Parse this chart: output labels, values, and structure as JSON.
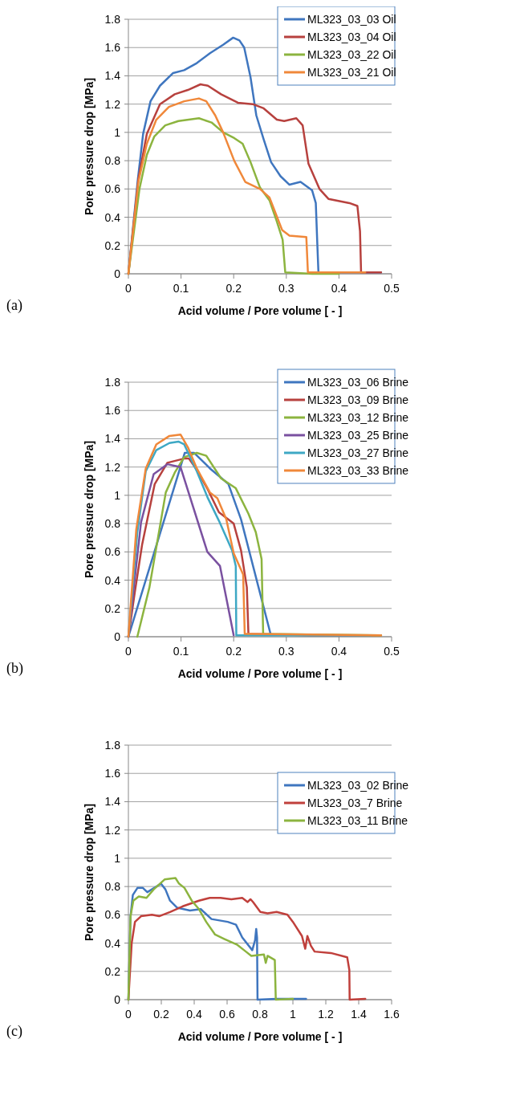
{
  "chart_data": [
    {
      "type": "line",
      "xlabel": "Acid volume / Pore volume [ - ]",
      "ylabel": "Pore pressure drop  [MPa]",
      "annotations": [
        "(a)"
      ],
      "xlim": [
        0,
        0.5
      ],
      "xticks": [
        0,
        0.1,
        0.2,
        0.3,
        0.4,
        0.5
      ],
      "ylim": [
        0,
        1.8
      ],
      "yticks": [
        0,
        0.2,
        0.4,
        0.6,
        0.8,
        1,
        1.2,
        1.4,
        1.6,
        1.8
      ],
      "grid": "y",
      "legend": "top right",
      "line_style": "solid",
      "marker": "none",
      "series": [
        {
          "name": "ML323_03_03 Oil",
          "color": "#3f76bf",
          "x": [
            0,
            0.018,
            0.028,
            0.042,
            0.06,
            0.085,
            0.106,
            0.13,
            0.155,
            0.18,
            0.199,
            0.211,
            0.22,
            0.232,
            0.243,
            0.257,
            0.271,
            0.289,
            0.306,
            0.327,
            0.349,
            0.356,
            0.359,
            0.361,
            0.4,
            0.48
          ],
          "values": [
            0,
            0.67,
            0.99,
            1.22,
            1.33,
            1.42,
            1.44,
            1.49,
            1.56,
            1.62,
            1.67,
            1.65,
            1.6,
            1.39,
            1.12,
            0.95,
            0.79,
            0.69,
            0.63,
            0.65,
            0.59,
            0.5,
            0.2,
            0.01,
            0.01,
            0.01
          ]
        },
        {
          "name": "ML323_03_04 Oil",
          "color": "#b7413e",
          "x": [
            0,
            0.019,
            0.035,
            0.06,
            0.088,
            0.113,
            0.137,
            0.151,
            0.176,
            0.208,
            0.236,
            0.257,
            0.282,
            0.296,
            0.319,
            0.331,
            0.342,
            0.363,
            0.38,
            0.42,
            0.435,
            0.44,
            0.442,
            0.48
          ],
          "values": [
            0,
            0.67,
            0.99,
            1.2,
            1.27,
            1.3,
            1.34,
            1.33,
            1.27,
            1.21,
            1.2,
            1.17,
            1.09,
            1.08,
            1.1,
            1.05,
            0.78,
            0.6,
            0.53,
            0.5,
            0.48,
            0.3,
            0.01,
            0.01
          ]
        },
        {
          "name": "ML323_03_22 Oil",
          "color": "#8cb43f",
          "x": [
            0,
            0.021,
            0.035,
            0.049,
            0.07,
            0.095,
            0.134,
            0.158,
            0.18,
            0.201,
            0.217,
            0.232,
            0.25,
            0.268,
            0.282,
            0.293,
            0.298,
            0.349,
            0.4
          ],
          "values": [
            0,
            0.6,
            0.84,
            0.97,
            1.05,
            1.08,
            1.1,
            1.07,
            1,
            0.96,
            0.92,
            0.79,
            0.61,
            0.52,
            0.37,
            0.24,
            0.01,
            0,
            0
          ]
        },
        {
          "name": "ML323_03_21 Oil",
          "color": "#f0883a",
          "x": [
            0,
            0.019,
            0.035,
            0.053,
            0.077,
            0.106,
            0.134,
            0.148,
            0.165,
            0.18,
            0.201,
            0.222,
            0.25,
            0.268,
            0.292,
            0.306,
            0.338,
            0.341,
            0.38,
            0.45
          ],
          "values": [
            0,
            0.65,
            0.92,
            1.09,
            1.18,
            1.22,
            1.24,
            1.22,
            1.12,
            1,
            0.8,
            0.65,
            0.6,
            0.54,
            0.31,
            0.27,
            0.26,
            0.01,
            0.01,
            0.01
          ]
        }
      ]
    },
    {
      "type": "line",
      "xlabel": "Acid volume / Pore volume  [ - ]",
      "ylabel": "Pore pressure drop  [MPa]",
      "annotations": [
        "(b)"
      ],
      "xlim": [
        0,
        0.5
      ],
      "xticks": [
        0,
        0.1,
        0.2,
        0.3,
        0.4,
        0.5
      ],
      "ylim": [
        0,
        1.8
      ],
      "yticks": [
        0,
        0.2,
        0.4,
        0.6,
        0.8,
        1,
        1.2,
        1.4,
        1.6,
        1.8
      ],
      "grid": "y",
      "legend": "top right",
      "line_style": "solid",
      "marker": "none",
      "series": [
        {
          "name": "ML323_03_06 Brine",
          "color": "#3f76bf",
          "x": [
            0,
            0.107,
            0.125,
            0.155,
            0.19,
            0.214,
            0.27
          ],
          "values": [
            0,
            1.3,
            1.3,
            1.19,
            1.08,
            0.83,
            0.02
          ]
        },
        {
          "name": "ML323_03_09 Brine",
          "color": "#b7413e",
          "x": [
            0,
            0.012,
            0.026,
            0.05,
            0.074,
            0.106,
            0.115,
            0.13,
            0.151,
            0.172,
            0.2,
            0.214,
            0.225,
            0.228,
            0.347,
            0.48
          ],
          "values": [
            0,
            0.31,
            0.65,
            1.08,
            1.23,
            1.26,
            1.26,
            1.18,
            1.04,
            0.88,
            0.8,
            0.61,
            0.35,
            0.02,
            0.01,
            0.01
          ]
        },
        {
          "name": "ML323_03_12 Brine",
          "color": "#8cb43f",
          "x": [
            0.017,
            0.04,
            0.071,
            0.088,
            0.106,
            0.13,
            0.148,
            0.176,
            0.204,
            0.228,
            0.242,
            0.253,
            0.256,
            0.48
          ],
          "values": [
            0,
            0.35,
            1.02,
            1.16,
            1.27,
            1.3,
            1.28,
            1.12,
            1.05,
            0.87,
            0.74,
            0.55,
            0.02,
            0.01
          ]
        },
        {
          "name": "ML323_03_25 Brine",
          "color": "#7a51a0",
          "x": [
            0,
            0.024,
            0.048,
            0.074,
            0.099,
            0.15,
            0.174,
            0.2
          ],
          "values": [
            0,
            0.81,
            1.15,
            1.22,
            1.2,
            0.6,
            0.5,
            0.01
          ]
        },
        {
          "name": "ML323_03_27 Brine",
          "color": "#3ea8c4",
          "x": [
            0,
            0.017,
            0.033,
            0.053,
            0.078,
            0.095,
            0.106,
            0.13,
            0.151,
            0.172,
            0.197,
            0.204,
            0.205,
            0.235,
            0.46
          ],
          "values": [
            0,
            0.74,
            1.17,
            1.32,
            1.37,
            1.38,
            1.36,
            1.17,
            0.98,
            0.82,
            0.61,
            0.5,
            0.01,
            0.01,
            0.01
          ]
        },
        {
          "name": "ML323_03_33 Brine",
          "color": "#f0883a",
          "x": [
            0,
            0.015,
            0.033,
            0.053,
            0.078,
            0.099,
            0.113,
            0.13,
            0.155,
            0.169,
            0.186,
            0.2,
            0.218,
            0.221,
            0.235,
            0.48
          ],
          "values": [
            0,
            0.76,
            1.19,
            1.36,
            1.42,
            1.43,
            1.34,
            1.19,
            1.02,
            0.98,
            0.83,
            0.59,
            0.44,
            0.02,
            0.02,
            0.01
          ]
        }
      ]
    },
    {
      "type": "line",
      "xlabel": "Acid volume / Pore volume  [ - ]",
      "ylabel": "Pore pressure drop  [MPa]",
      "annotations": [
        "(c)"
      ],
      "xlim": [
        0,
        1.6
      ],
      "xticks": [
        0,
        0.2,
        0.4,
        0.6,
        0.8,
        1,
        1.2,
        1.4,
        1.6
      ],
      "ylim": [
        0,
        1.8
      ],
      "yticks": [
        0,
        0.2,
        0.4,
        0.6,
        0.8,
        1,
        1.2,
        1.4,
        1.6,
        1.8
      ],
      "grid": "y",
      "legend": "top right",
      "line_style": "solid",
      "marker": "none",
      "series": [
        {
          "name": "ML323_03_02 Brine",
          "color": "#3f76bf",
          "x": [
            0,
            0.013,
            0.027,
            0.055,
            0.088,
            0.115,
            0.143,
            0.198,
            0.225,
            0.253,
            0.297,
            0.374,
            0.44,
            0.505,
            0.604,
            0.654,
            0.692,
            0.753,
            0.77,
            0.777,
            0.782,
            0.785,
            0.9,
            1.08
          ],
          "values": [
            0,
            0.59,
            0.74,
            0.79,
            0.79,
            0.76,
            0.78,
            0.82,
            0.78,
            0.7,
            0.65,
            0.63,
            0.64,
            0.57,
            0.55,
            0.53,
            0.44,
            0.35,
            0.42,
            0.5,
            0.44,
            0,
            0.005,
            0.005
          ]
        },
        {
          "name": "ML323_03_7 Brine",
          "color": "#c0403c",
          "x": [
            0,
            0.02,
            0.04,
            0.077,
            0.143,
            0.187,
            0.253,
            0.33,
            0.429,
            0.495,
            0.56,
            0.626,
            0.692,
            0.725,
            0.742,
            0.758,
            0.802,
            0.846,
            0.901,
            0.967,
            1,
            1.055,
            1.075,
            1.088,
            1.11,
            1.132,
            1.231,
            1.33,
            1.343,
            1.345,
            1.44
          ],
          "values": [
            0,
            0.4,
            0.55,
            0.59,
            0.6,
            0.59,
            0.62,
            0.66,
            0.7,
            0.72,
            0.72,
            0.71,
            0.72,
            0.69,
            0.71,
            0.69,
            0.62,
            0.61,
            0.62,
            0.6,
            0.55,
            0.45,
            0.36,
            0.45,
            0.38,
            0.34,
            0.33,
            0.3,
            0.21,
            0,
            0.005
          ]
        },
        {
          "name": "ML323_03_11 Brine",
          "color": "#8cb43f",
          "x": [
            0,
            0.013,
            0.03,
            0.063,
            0.11,
            0.154,
            0.22,
            0.286,
            0.308,
            0.341,
            0.385,
            0.429,
            0.473,
            0.527,
            0.582,
            0.659,
            0.714,
            0.747,
            0.824,
            0.835,
            0.846,
            0.89,
            0.896,
            1
          ],
          "values": [
            0,
            0.59,
            0.7,
            0.73,
            0.72,
            0.78,
            0.85,
            0.86,
            0.82,
            0.79,
            0.7,
            0.64,
            0.55,
            0.46,
            0.43,
            0.39,
            0.34,
            0.31,
            0.32,
            0.26,
            0.31,
            0.28,
            0,
            0.005
          ]
        }
      ]
    }
  ]
}
